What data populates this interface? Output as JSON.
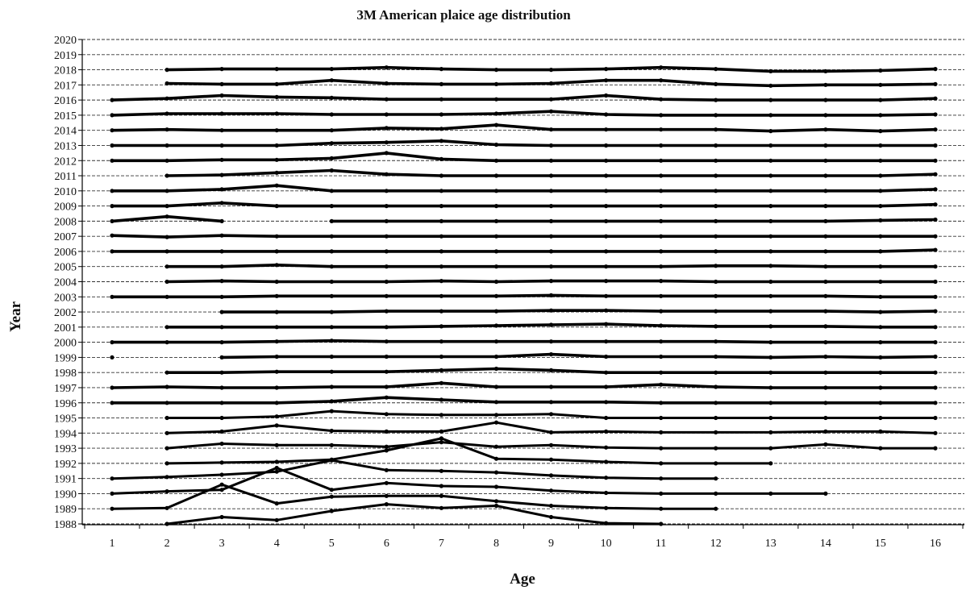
{
  "chart_data": {
    "type": "line",
    "title": "3M American plaice age distribution",
    "xlabel": "Age",
    "ylabel": "Year",
    "xlim": [
      1,
      16
    ],
    "ylim": [
      1988,
      2020
    ],
    "x_ticks": [
      1,
      2,
      3,
      4,
      5,
      6,
      7,
      8,
      9,
      10,
      11,
      12,
      13,
      14,
      15,
      16
    ],
    "y_ticks": [
      1988,
      1989,
      1990,
      1991,
      1992,
      1993,
      1994,
      1995,
      1996,
      1997,
      1998,
      1999,
      2000,
      2001,
      2002,
      2003,
      2004,
      2005,
      2006,
      2007,
      2008,
      2009,
      2010,
      2011,
      2012,
      2013,
      2014,
      2015,
      2016,
      2017,
      2018,
      2019,
      2020
    ],
    "grid": "horizontal dashed",
    "legend": "none",
    "line_color": "#000000",
    "series": [
      {
        "year": 1988,
        "ages": [
          2,
          3,
          4,
          5,
          6,
          7,
          8,
          9,
          10,
          11
        ],
        "values": [
          0.0,
          0.45,
          0.25,
          0.85,
          1.3,
          1.05,
          1.2,
          0.45,
          0.05,
          0.0
        ]
      },
      {
        "year": 1989,
        "ages": [
          1,
          2,
          3,
          4,
          5,
          6,
          7,
          8,
          9,
          10,
          11,
          12
        ],
        "values": [
          0.0,
          0.05,
          1.6,
          0.35,
          0.8,
          0.85,
          0.85,
          0.5,
          0.2,
          0.05,
          0.0,
          0.0
        ]
      },
      {
        "year": 1990,
        "ages": [
          1,
          2,
          3,
          4,
          5,
          6,
          7,
          8,
          9,
          10,
          11,
          12,
          13,
          14
        ],
        "values": [
          0.0,
          0.15,
          0.25,
          1.7,
          0.25,
          0.7,
          0.5,
          0.45,
          0.2,
          0.05,
          0.0,
          0.0,
          0.0,
          0.0
        ]
      },
      {
        "year": 1991,
        "ages": [
          1,
          2,
          3,
          4,
          5,
          6,
          7,
          8,
          9,
          10,
          11,
          12
        ],
        "values": [
          0.0,
          0.1,
          0.25,
          0.45,
          1.2,
          0.55,
          0.5,
          0.4,
          0.2,
          0.05,
          0.0,
          0.0
        ]
      },
      {
        "year": 1992,
        "ages": [
          2,
          3,
          4,
          5,
          6,
          7,
          8,
          9,
          10,
          11,
          12,
          13
        ],
        "values": [
          0.0,
          0.05,
          0.1,
          0.25,
          0.85,
          1.65,
          0.3,
          0.25,
          0.1,
          0.0,
          0.0,
          0.0
        ]
      },
      {
        "year": 1993,
        "ages": [
          2,
          3,
          4,
          5,
          6,
          7,
          8,
          9,
          10,
          11,
          12,
          13,
          14,
          15,
          16
        ],
        "values": [
          0.0,
          0.3,
          0.2,
          0.2,
          0.1,
          0.4,
          0.1,
          0.2,
          0.05,
          0.0,
          0.0,
          0.0,
          0.25,
          0.0,
          0.0
        ]
      },
      {
        "year": 1994,
        "ages": [
          2,
          3,
          4,
          5,
          6,
          7,
          8,
          9,
          10,
          11,
          12,
          13,
          14,
          15,
          16
        ],
        "values": [
          0.0,
          0.1,
          0.5,
          0.15,
          0.1,
          0.1,
          0.7,
          0.05,
          0.1,
          0.05,
          0.05,
          0.05,
          0.1,
          0.1,
          0.0
        ]
      },
      {
        "year": 1995,
        "ages": [
          2,
          3,
          4,
          5,
          6,
          7,
          8,
          9,
          10,
          11,
          12,
          13,
          14,
          15,
          16
        ],
        "values": [
          0.0,
          0.0,
          0.1,
          0.45,
          0.25,
          0.2,
          0.2,
          0.25,
          0.0,
          0.0,
          0.0,
          0.0,
          0.0,
          0.0,
          0.0
        ]
      },
      {
        "year": 1996,
        "ages": [
          1,
          2,
          3,
          4,
          5,
          6,
          7,
          8,
          9,
          10,
          11,
          12,
          13,
          14,
          15,
          16
        ],
        "values": [
          0.0,
          0.0,
          0.0,
          0.0,
          0.1,
          0.35,
          0.2,
          0.05,
          0.05,
          0.05,
          0.0,
          0.0,
          0.0,
          0.0,
          0.0,
          0.0
        ]
      },
      {
        "year": 1997,
        "ages": [
          1,
          2,
          3,
          4,
          5,
          6,
          7,
          8,
          9,
          10,
          11,
          12,
          13,
          14,
          15,
          16
        ],
        "values": [
          0.0,
          0.05,
          0.0,
          0.0,
          0.05,
          0.05,
          0.3,
          0.05,
          0.05,
          0.05,
          0.2,
          0.05,
          0.0,
          0.0,
          0.0,
          0.0
        ]
      },
      {
        "year": 1998,
        "ages": [
          2,
          3,
          4,
          5,
          6,
          7,
          8,
          9,
          10,
          11,
          12,
          13,
          14,
          15,
          16
        ],
        "values": [
          0.0,
          0.0,
          0.05,
          0.05,
          0.05,
          0.15,
          0.25,
          0.15,
          0.0,
          0.0,
          0.0,
          0.0,
          0.0,
          0.0,
          0.0
        ]
      },
      {
        "year": 1999,
        "ages": [
          3,
          4,
          5,
          6,
          7,
          8,
          9,
          10,
          11,
          12,
          13,
          14,
          15,
          16
        ],
        "values": [
          0.0,
          0.05,
          0.05,
          0.05,
          0.05,
          0.05,
          0.2,
          0.05,
          0.05,
          0.05,
          0.0,
          0.05,
          0.0,
          0.05
        ]
      },
      {
        "year": 2000,
        "ages": [
          1,
          2,
          3,
          4,
          5,
          6,
          7,
          8,
          9,
          10,
          11,
          12,
          13,
          14,
          15,
          16
        ],
        "values": [
          0.0,
          0.0,
          0.0,
          0.05,
          0.1,
          0.05,
          0.05,
          0.05,
          0.05,
          0.05,
          0.05,
          0.05,
          0.0,
          0.0,
          0.0,
          0.0
        ]
      },
      {
        "year": 2001,
        "ages": [
          2,
          3,
          4,
          5,
          6,
          7,
          8,
          9,
          10,
          11,
          12,
          13,
          14,
          15,
          16
        ],
        "values": [
          0.0,
          0.0,
          0.0,
          0.0,
          0.0,
          0.05,
          0.1,
          0.15,
          0.2,
          0.1,
          0.05,
          0.05,
          0.05,
          0.0,
          0.0
        ]
      },
      {
        "year": 2002,
        "ages": [
          3,
          4,
          5,
          6,
          7,
          8,
          9,
          10,
          11,
          12,
          13,
          14,
          15,
          16
        ],
        "values": [
          0.0,
          0.0,
          0.0,
          0.05,
          0.05,
          0.05,
          0.1,
          0.1,
          0.05,
          0.05,
          0.05,
          0.05,
          0.0,
          0.05
        ]
      },
      {
        "year": 2003,
        "ages": [
          1,
          2,
          3,
          4,
          5,
          6,
          7,
          8,
          9,
          10,
          11,
          12,
          13,
          14,
          15,
          16
        ],
        "values": [
          0.0,
          0.0,
          0.0,
          0.05,
          0.05,
          0.05,
          0.05,
          0.05,
          0.1,
          0.05,
          0.05,
          0.05,
          0.05,
          0.05,
          0.0,
          0.0
        ]
      },
      {
        "year": 2004,
        "ages": [
          2,
          3,
          4,
          5,
          6,
          7,
          8,
          9,
          10,
          11,
          12,
          13,
          14,
          15,
          16
        ],
        "values": [
          0.0,
          0.05,
          0.0,
          0.0,
          0.0,
          0.05,
          0.0,
          0.05,
          0.05,
          0.05,
          0.0,
          0.0,
          0.0,
          0.0,
          0.0
        ]
      },
      {
        "year": 2005,
        "ages": [
          2,
          3,
          4,
          5,
          6,
          7,
          8,
          9,
          10,
          11,
          12,
          13,
          14,
          15,
          16
        ],
        "values": [
          0.0,
          0.0,
          0.1,
          0.0,
          0.0,
          0.0,
          0.0,
          0.0,
          0.0,
          0.0,
          0.05,
          0.05,
          0.0,
          0.0,
          0.0
        ]
      },
      {
        "year": 2006,
        "ages": [
          1,
          2,
          3,
          4,
          5,
          6,
          7,
          8,
          9,
          10,
          11,
          12,
          13,
          14,
          15,
          16
        ],
        "values": [
          0.0,
          0.0,
          0.0,
          0.0,
          0.0,
          0.0,
          0.0,
          0.0,
          0.0,
          0.0,
          0.0,
          0.0,
          0.0,
          0.0,
          0.0,
          0.1
        ]
      },
      {
        "year": 2007,
        "ages": [
          1,
          2,
          3,
          4,
          5,
          6,
          7,
          8,
          9,
          10,
          11,
          12,
          13,
          14,
          15,
          16
        ],
        "values": [
          0.05,
          -0.05,
          0.05,
          0.0,
          0.0,
          0.0,
          0.0,
          0.0,
          0.0,
          0.0,
          0.0,
          0.0,
          0.0,
          0.0,
          0.0,
          0.0
        ]
      },
      {
        "year": 2008,
        "ages": [
          1,
          2,
          3
        ],
        "values": [
          0.0,
          0.3,
          0.0
        ]
      },
      {
        "year": 2008,
        "ages": [
          5,
          6,
          7,
          8,
          9,
          10,
          11,
          12,
          13,
          14,
          15,
          16
        ],
        "values": [
          0.0,
          0.0,
          0.0,
          0.0,
          0.0,
          0.0,
          0.0,
          0.0,
          0.0,
          0.0,
          0.05,
          0.1
        ]
      },
      {
        "year": 2009,
        "ages": [
          1,
          2,
          3,
          4,
          5,
          6,
          7,
          8,
          9,
          10,
          11,
          12,
          13,
          14,
          15,
          16
        ],
        "values": [
          0.0,
          0.0,
          0.2,
          0.0,
          0.0,
          0.0,
          0.0,
          0.0,
          0.0,
          0.0,
          0.0,
          0.0,
          0.0,
          0.0,
          0.0,
          0.1
        ]
      },
      {
        "year": 2010,
        "ages": [
          1,
          2,
          3,
          4,
          5,
          6,
          7,
          8,
          9,
          10,
          11,
          12,
          13,
          14,
          15,
          16
        ],
        "values": [
          0.0,
          0.0,
          0.1,
          0.35,
          0.0,
          0.0,
          0.0,
          0.0,
          0.0,
          0.0,
          0.0,
          0.0,
          0.0,
          0.0,
          0.0,
          0.1
        ]
      },
      {
        "year": 2011,
        "ages": [
          2,
          3,
          4,
          5,
          6,
          7,
          8,
          9,
          10,
          11,
          12,
          13,
          14,
          15,
          16
        ],
        "values": [
          0.0,
          0.05,
          0.2,
          0.35,
          0.1,
          0.0,
          0.0,
          0.0,
          0.0,
          0.0,
          0.0,
          0.0,
          0.0,
          0.0,
          0.1
        ]
      },
      {
        "year": 2012,
        "ages": [
          1,
          2,
          3,
          4,
          5,
          6,
          7,
          8,
          9,
          10,
          11,
          12,
          13,
          14,
          15,
          16
        ],
        "values": [
          0.0,
          0.0,
          0.05,
          0.05,
          0.15,
          0.5,
          0.1,
          0.0,
          0.0,
          0.0,
          0.0,
          0.0,
          0.0,
          0.0,
          0.0,
          0.0
        ]
      },
      {
        "year": 2013,
        "ages": [
          1,
          2,
          3,
          4,
          5,
          6,
          7,
          8,
          9,
          10,
          11,
          12,
          13,
          14,
          15,
          16
        ],
        "values": [
          0.0,
          0.0,
          0.0,
          0.0,
          0.15,
          0.2,
          0.3,
          0.05,
          0.0,
          0.0,
          0.0,
          0.0,
          0.0,
          0.0,
          0.0,
          0.0
        ]
      },
      {
        "year": 2014,
        "ages": [
          1,
          2,
          3,
          4,
          5,
          6,
          7,
          8,
          9,
          10,
          11,
          12,
          13,
          14,
          15,
          16
        ],
        "values": [
          0.0,
          0.05,
          0.0,
          0.0,
          0.0,
          0.15,
          0.1,
          0.35,
          0.05,
          0.05,
          0.05,
          0.05,
          -0.05,
          0.05,
          -0.05,
          0.05
        ]
      },
      {
        "year": 2015,
        "ages": [
          1,
          2,
          3,
          4,
          5,
          6,
          7,
          8,
          9,
          10,
          11,
          12,
          13,
          14,
          15,
          16
        ],
        "values": [
          0.0,
          0.1,
          0.1,
          0.1,
          0.05,
          0.05,
          0.05,
          0.1,
          0.25,
          0.05,
          0.0,
          0.0,
          0.0,
          0.0,
          0.0,
          0.05
        ]
      },
      {
        "year": 2016,
        "ages": [
          1,
          2,
          3,
          4,
          5,
          6,
          7,
          8,
          9,
          10,
          11,
          12,
          13,
          14,
          15,
          16
        ],
        "values": [
          0.0,
          0.1,
          0.3,
          0.2,
          0.15,
          0.05,
          0.05,
          0.05,
          0.05,
          0.3,
          0.05,
          0.0,
          0.0,
          0.0,
          0.0,
          0.1
        ]
      },
      {
        "year": 2017,
        "ages": [
          2,
          3,
          4,
          5,
          6,
          7,
          8,
          9,
          10,
          11,
          12,
          13,
          14,
          15,
          16
        ],
        "values": [
          0.1,
          0.05,
          0.05,
          0.3,
          0.1,
          0.05,
          0.05,
          0.1,
          0.3,
          0.3,
          0.05,
          -0.05,
          0.0,
          0.0,
          0.05
        ]
      },
      {
        "year": 2018,
        "ages": [
          2,
          3,
          4,
          5,
          6,
          7,
          8,
          9,
          10,
          11,
          12,
          13,
          14,
          15,
          16
        ],
        "values": [
          0.0,
          0.05,
          0.05,
          0.05,
          0.15,
          0.05,
          0.0,
          0.0,
          0.05,
          0.15,
          0.05,
          -0.1,
          -0.1,
          -0.05,
          0.05
        ]
      }
    ],
    "markers": [
      {
        "year": 1999,
        "age": 1
      }
    ]
  }
}
